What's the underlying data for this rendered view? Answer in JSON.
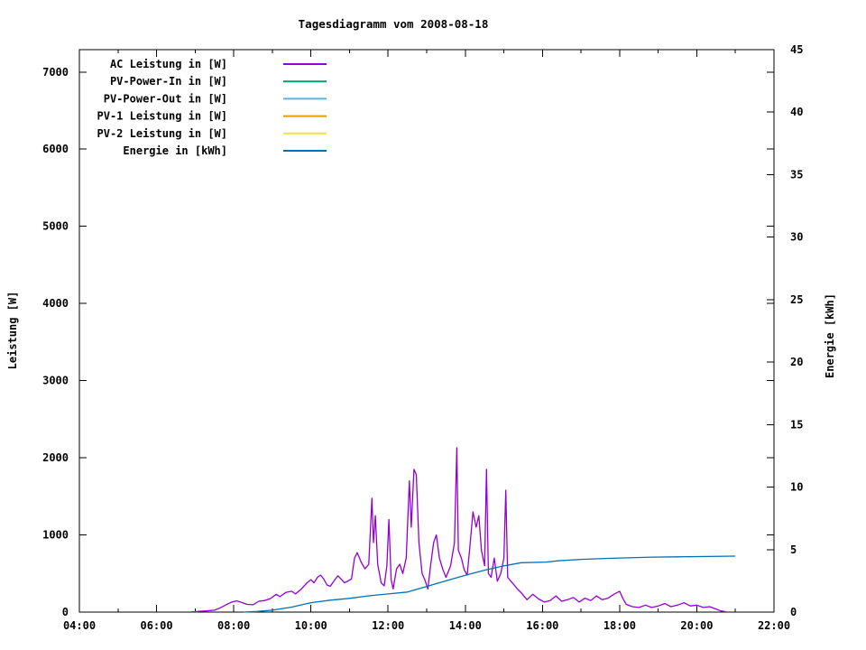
{
  "window": {
    "background": "#ffffff"
  },
  "chart_data": {
    "type": "line",
    "title": "Tagesdiagramm vom 2008-08-18",
    "x_axis": {
      "tick_labels": [
        "04:00",
        "06:00",
        "08:00",
        "10:00",
        "12:00",
        "14:00",
        "16:00",
        "18:00",
        "20:00",
        "22:00"
      ],
      "tick_hours": [
        4,
        6,
        8,
        10,
        12,
        14,
        16,
        18,
        20,
        22
      ],
      "minor_tick_hours": [
        5,
        7,
        9,
        11,
        13,
        15,
        17,
        19,
        21
      ],
      "range_hours": [
        4,
        22
      ]
    },
    "y_left": {
      "label": "Leistung [W]",
      "ticks": [
        0,
        1000,
        2000,
        3000,
        4000,
        5000,
        6000,
        7000
      ],
      "range": [
        0,
        7290
      ]
    },
    "y_right": {
      "label": "Energie [kWh]",
      "ticks": [
        0,
        5,
        10,
        15,
        20,
        25,
        30,
        35,
        40,
        45
      ],
      "range": [
        0,
        45
      ]
    },
    "grid": false,
    "legend_position": "top-left-inside",
    "series": [
      {
        "id": "ac-leistung",
        "name": "AC Leistung in [W]",
        "color": "#9400d3",
        "axis": "left",
        "points": [
          [
            6.9,
            5
          ],
          [
            7.1,
            10
          ],
          [
            7.3,
            15
          ],
          [
            7.5,
            25
          ],
          [
            7.65,
            55
          ],
          [
            7.8,
            95
          ],
          [
            7.95,
            130
          ],
          [
            8.08,
            145
          ],
          [
            8.2,
            125
          ],
          [
            8.35,
            100
          ],
          [
            8.5,
            95
          ],
          [
            8.65,
            140
          ],
          [
            8.8,
            150
          ],
          [
            8.95,
            175
          ],
          [
            9.1,
            230
          ],
          [
            9.2,
            200
          ],
          [
            9.35,
            255
          ],
          [
            9.5,
            270
          ],
          [
            9.6,
            235
          ],
          [
            9.75,
            300
          ],
          [
            9.9,
            380
          ],
          [
            10.0,
            420
          ],
          [
            10.08,
            380
          ],
          [
            10.17,
            450
          ],
          [
            10.25,
            480
          ],
          [
            10.33,
            430
          ],
          [
            10.42,
            350
          ],
          [
            10.5,
            335
          ],
          [
            10.62,
            420
          ],
          [
            10.7,
            470
          ],
          [
            10.78,
            430
          ],
          [
            10.87,
            380
          ],
          [
            10.95,
            400
          ],
          [
            11.05,
            430
          ],
          [
            11.13,
            700
          ],
          [
            11.2,
            770
          ],
          [
            11.3,
            650
          ],
          [
            11.4,
            560
          ],
          [
            11.5,
            620
          ],
          [
            11.58,
            1475
          ],
          [
            11.62,
            900
          ],
          [
            11.67,
            1250
          ],
          [
            11.73,
            620
          ],
          [
            11.82,
            380
          ],
          [
            11.9,
            340
          ],
          [
            11.97,
            600
          ],
          [
            12.02,
            1200
          ],
          [
            12.08,
            420
          ],
          [
            12.13,
            300
          ],
          [
            12.22,
            560
          ],
          [
            12.3,
            620
          ],
          [
            12.38,
            500
          ],
          [
            12.47,
            700
          ],
          [
            12.55,
            1700
          ],
          [
            12.6,
            1100
          ],
          [
            12.67,
            1850
          ],
          [
            12.73,
            1780
          ],
          [
            12.8,
            900
          ],
          [
            12.88,
            500
          ],
          [
            12.95,
            420
          ],
          [
            13.03,
            300
          ],
          [
            13.1,
            600
          ],
          [
            13.18,
            900
          ],
          [
            13.25,
            1000
          ],
          [
            13.33,
            700
          ],
          [
            13.42,
            550
          ],
          [
            13.5,
            450
          ],
          [
            13.62,
            600
          ],
          [
            13.72,
            900
          ],
          [
            13.78,
            2130
          ],
          [
            13.82,
            800
          ],
          [
            13.9,
            700
          ],
          [
            13.97,
            550
          ],
          [
            14.05,
            480
          ],
          [
            14.13,
            900
          ],
          [
            14.2,
            1300
          ],
          [
            14.28,
            1100
          ],
          [
            14.35,
            1250
          ],
          [
            14.42,
            800
          ],
          [
            14.5,
            600
          ],
          [
            14.55,
            1850
          ],
          [
            14.6,
            500
          ],
          [
            14.67,
            450
          ],
          [
            14.75,
            700
          ],
          [
            14.83,
            400
          ],
          [
            14.92,
            500
          ],
          [
            15.0,
            700
          ],
          [
            15.05,
            1580
          ],
          [
            15.1,
            450
          ],
          [
            15.18,
            400
          ],
          [
            15.27,
            350
          ],
          [
            15.35,
            300
          ],
          [
            15.45,
            250
          ],
          [
            15.6,
            160
          ],
          [
            15.75,
            230
          ],
          [
            15.9,
            170
          ],
          [
            16.05,
            130
          ],
          [
            16.2,
            150
          ],
          [
            16.35,
            210
          ],
          [
            16.5,
            140
          ],
          [
            16.65,
            160
          ],
          [
            16.8,
            190
          ],
          [
            16.95,
            130
          ],
          [
            17.1,
            180
          ],
          [
            17.25,
            150
          ],
          [
            17.4,
            210
          ],
          [
            17.55,
            160
          ],
          [
            17.7,
            180
          ],
          [
            17.85,
            230
          ],
          [
            18.0,
            270
          ],
          [
            18.08,
            180
          ],
          [
            18.17,
            100
          ],
          [
            18.33,
            70
          ],
          [
            18.5,
            60
          ],
          [
            18.67,
            90
          ],
          [
            18.83,
            60
          ],
          [
            19.0,
            80
          ],
          [
            19.17,
            110
          ],
          [
            19.33,
            70
          ],
          [
            19.5,
            90
          ],
          [
            19.67,
            120
          ],
          [
            19.83,
            80
          ],
          [
            20.0,
            90
          ],
          [
            20.17,
            60
          ],
          [
            20.33,
            70
          ],
          [
            20.5,
            40
          ],
          [
            20.62,
            15
          ],
          [
            20.75,
            5
          ]
        ]
      },
      {
        "id": "pv-power-in",
        "name": "PV-Power-In in [W]",
        "color": "#009e73",
        "axis": "left",
        "points": []
      },
      {
        "id": "pv-power-out",
        "name": "PV-Power-Out in [W]",
        "color": "#56b4e9",
        "axis": "left",
        "points": []
      },
      {
        "id": "pv-1-leistung",
        "name": "PV-1 Leistung in [W]",
        "color": "#e69f00",
        "axis": "left",
        "points": []
      },
      {
        "id": "pv-2-leistung",
        "name": "PV-2 Leistung in [W]",
        "color": "#f0e442",
        "axis": "left",
        "points": []
      },
      {
        "id": "energie",
        "name": "Energie in [kWh]",
        "color": "#0072b2",
        "axis": "right",
        "points": [
          [
            8.25,
            0
          ],
          [
            8.6,
            0.05
          ],
          [
            9.0,
            0.15
          ],
          [
            9.5,
            0.4
          ],
          [
            10.0,
            0.75
          ],
          [
            10.5,
            0.95
          ],
          [
            11.0,
            1.1
          ],
          [
            11.5,
            1.3
          ],
          [
            12.0,
            1.45
          ],
          [
            12.5,
            1.6
          ],
          [
            13.0,
            2.05
          ],
          [
            13.5,
            2.5
          ],
          [
            14.0,
            2.95
          ],
          [
            14.5,
            3.35
          ],
          [
            15.0,
            3.7
          ],
          [
            15.45,
            3.95
          ],
          [
            16.1,
            4.0
          ],
          [
            16.4,
            4.1
          ],
          [
            17.0,
            4.22
          ],
          [
            17.7,
            4.3
          ],
          [
            18.85,
            4.4
          ],
          [
            19.5,
            4.42
          ],
          [
            20.3,
            4.45
          ],
          [
            21.0,
            4.48
          ]
        ]
      }
    ],
    "colors": {
      "axis": "#000000",
      "text": "#000000",
      "background": "#ffffff"
    }
  }
}
